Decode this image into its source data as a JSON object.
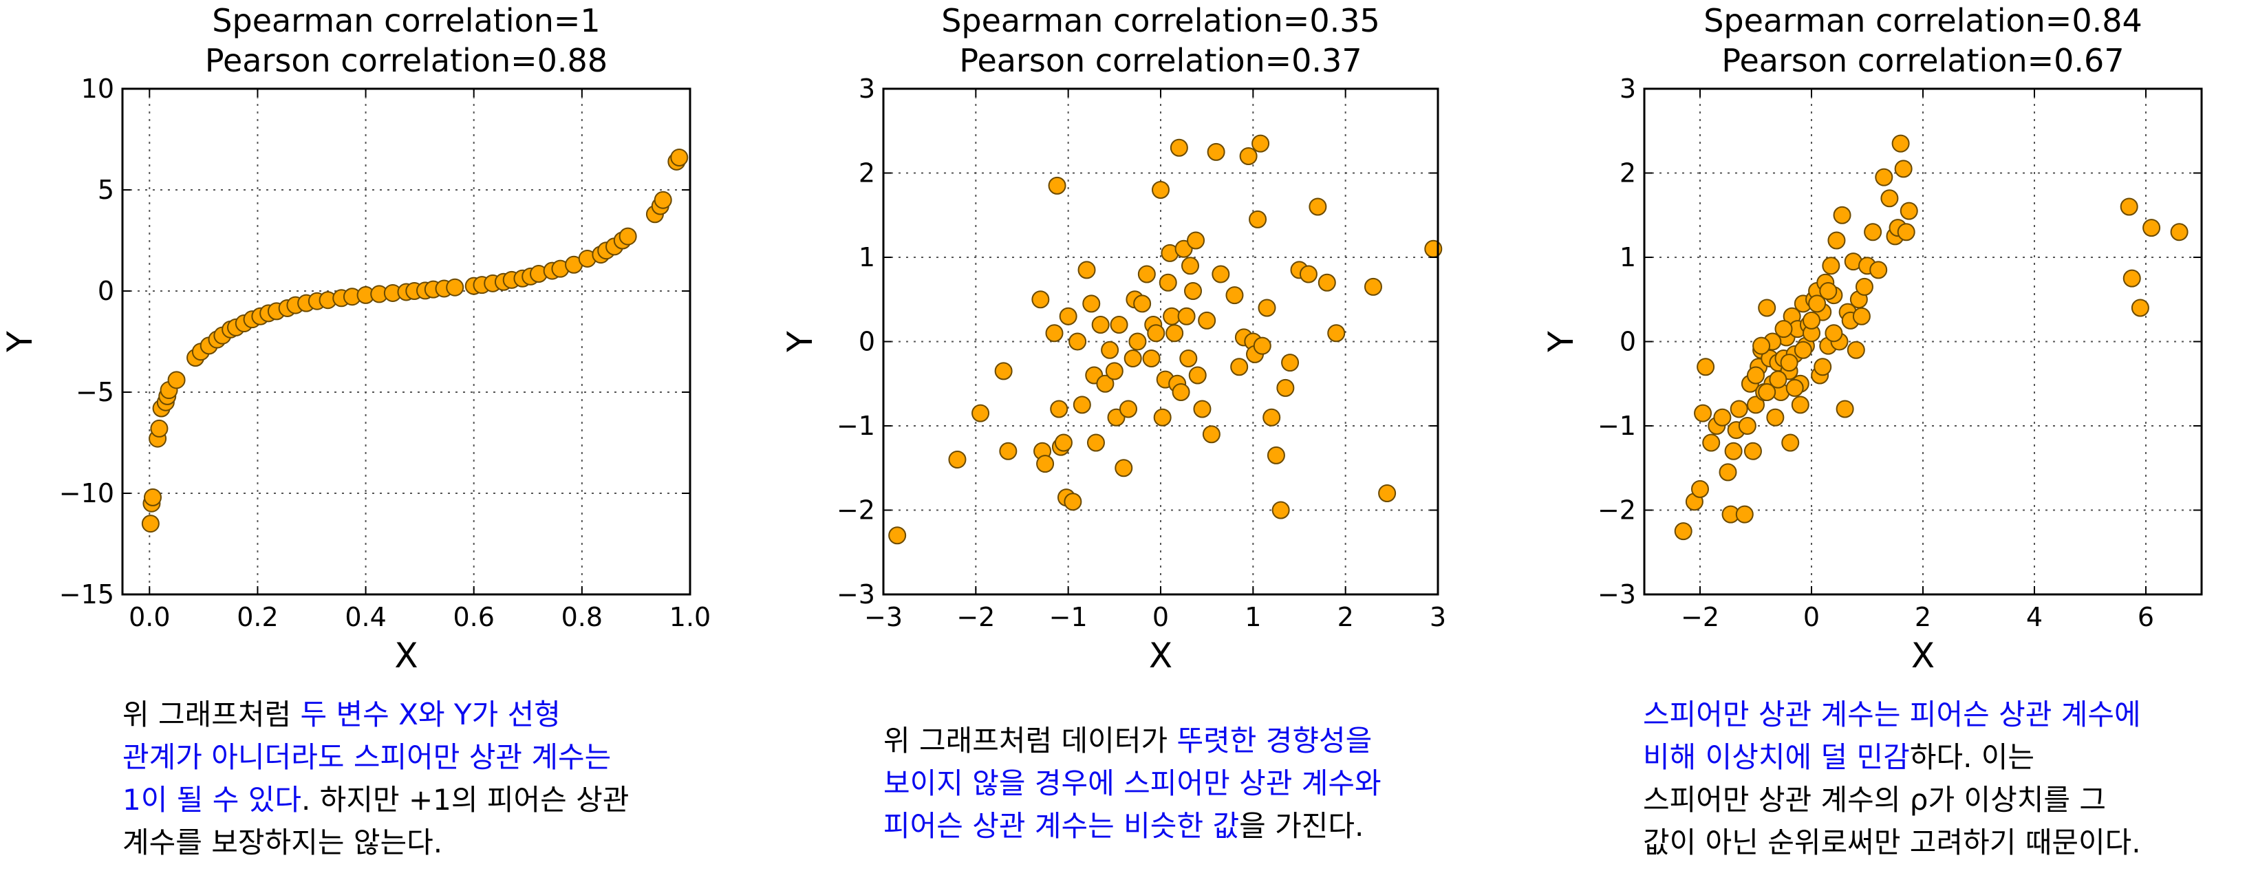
{
  "accent_color": "#0a0af0",
  "marker_color": "#ffa500",
  "chart_data": [
    {
      "type": "scatter",
      "title": "Spearman correlation=1",
      "subtitle": "Pearson correlation=0.88",
      "xlabel": "X",
      "ylabel": "Y",
      "xlim": [
        -0.05,
        1.0
      ],
      "ylim": [
        -15,
        10
      ],
      "xticks": [
        0.0,
        0.2,
        0.4,
        0.6,
        0.8,
        1.0
      ],
      "xtick_labels": [
        "0.0",
        "0.2",
        "0.4",
        "0.6",
        "0.8",
        "1.0"
      ],
      "yticks": [
        -15,
        -10,
        -5,
        0,
        5,
        10
      ],
      "ytick_labels": [
        "−15",
        "−10",
        "−5",
        "0",
        "5",
        "10"
      ],
      "grid": true,
      "x": [
        0.002,
        0.004,
        0.006,
        0.015,
        0.018,
        0.022,
        0.03,
        0.033,
        0.036,
        0.05,
        0.085,
        0.095,
        0.11,
        0.125,
        0.135,
        0.15,
        0.16,
        0.175,
        0.19,
        0.205,
        0.22,
        0.235,
        0.255,
        0.27,
        0.29,
        0.31,
        0.33,
        0.355,
        0.375,
        0.4,
        0.425,
        0.45,
        0.475,
        0.49,
        0.51,
        0.525,
        0.545,
        0.565,
        0.6,
        0.615,
        0.635,
        0.655,
        0.67,
        0.69,
        0.705,
        0.72,
        0.745,
        0.76,
        0.785,
        0.81,
        0.835,
        0.845,
        0.86,
        0.875,
        0.885,
        0.935,
        0.945,
        0.95,
        0.975,
        0.98
      ],
      "y": [
        -11.5,
        -10.5,
        -10.2,
        -7.3,
        -6.8,
        -5.8,
        -5.5,
        -5.2,
        -4.9,
        -4.4,
        -3.3,
        -3.0,
        -2.7,
        -2.4,
        -2.2,
        -1.9,
        -1.8,
        -1.6,
        -1.4,
        -1.25,
        -1.1,
        -1.0,
        -0.85,
        -0.7,
        -0.6,
        -0.5,
        -0.45,
        -0.35,
        -0.28,
        -0.2,
        -0.15,
        -0.1,
        -0.05,
        0.0,
        0.02,
        0.08,
        0.12,
        0.18,
        0.25,
        0.3,
        0.38,
        0.45,
        0.55,
        0.62,
        0.72,
        0.85,
        1.0,
        1.1,
        1.3,
        1.6,
        1.8,
        2.0,
        2.2,
        2.5,
        2.7,
        3.8,
        4.2,
        4.5,
        6.4,
        6.6
      ]
    },
    {
      "type": "scatter",
      "title": "Spearman correlation=0.35",
      "subtitle": "Pearson correlation=0.37",
      "xlabel": "X",
      "ylabel": "Y",
      "xlim": [
        -3,
        3
      ],
      "ylim": [
        -3,
        3
      ],
      "xticks": [
        -3,
        -2,
        -1,
        0,
        1,
        2,
        3
      ],
      "xtick_labels": [
        "−3",
        "−2",
        "−1",
        "0",
        "1",
        "2",
        "3"
      ],
      "yticks": [
        -3,
        -2,
        -1,
        0,
        1,
        2,
        3
      ],
      "ytick_labels": [
        "−3",
        "−2",
        "−1",
        "0",
        "1",
        "2",
        "3"
      ],
      "grid": true,
      "x": [
        -2.85,
        -2.2,
        -1.95,
        -1.7,
        -1.65,
        -1.3,
        -1.28,
        -1.25,
        -1.15,
        -1.12,
        -1.1,
        -1.08,
        -1.05,
        -1.02,
        -1.0,
        -0.95,
        -0.9,
        -0.85,
        -0.8,
        -0.75,
        -0.72,
        -0.7,
        -0.65,
        -0.6,
        -0.55,
        -0.5,
        -0.48,
        -0.45,
        -0.4,
        -0.35,
        -0.3,
        -0.28,
        -0.25,
        -0.2,
        -0.15,
        -0.1,
        -0.08,
        -0.05,
        0.0,
        0.02,
        0.05,
        0.08,
        0.1,
        0.12,
        0.15,
        0.18,
        0.2,
        0.22,
        0.25,
        0.28,
        0.3,
        0.32,
        0.35,
        0.38,
        0.4,
        0.45,
        0.5,
        0.55,
        0.6,
        0.65,
        0.8,
        0.85,
        0.9,
        0.95,
        1.0,
        1.02,
        1.05,
        1.08,
        1.1,
        1.15,
        1.2,
        1.25,
        1.3,
        1.35,
        1.4,
        1.5,
        1.6,
        1.7,
        1.8,
        1.9,
        2.3,
        2.45,
        2.95
      ],
      "y": [
        -2.3,
        -1.4,
        -0.85,
        -0.35,
        -1.3,
        0.5,
        -1.3,
        -1.45,
        0.1,
        1.85,
        -0.8,
        -1.25,
        -1.2,
        -1.85,
        0.3,
        -1.9,
        0.0,
        -0.75,
        0.85,
        0.45,
        -0.4,
        -1.2,
        0.2,
        -0.5,
        -0.1,
        -0.35,
        -0.9,
        0.2,
        -1.5,
        -0.8,
        -0.2,
        0.5,
        0.0,
        0.45,
        0.8,
        -0.2,
        0.2,
        0.1,
        1.8,
        -0.9,
        -0.45,
        0.7,
        1.05,
        0.3,
        0.1,
        -0.5,
        2.3,
        -0.6,
        1.1,
        0.3,
        -0.2,
        0.9,
        0.6,
        1.2,
        -0.4,
        -0.8,
        0.25,
        -1.1,
        2.25,
        0.8,
        0.55,
        -0.3,
        0.05,
        2.2,
        0.0,
        -0.15,
        1.45,
        2.35,
        -0.05,
        0.4,
        -0.9,
        -1.35,
        -2.0,
        -0.55,
        -0.25,
        0.85,
        0.8,
        1.6,
        0.7,
        0.1,
        0.65,
        -1.8,
        1.1
      ]
    },
    {
      "type": "scatter",
      "title": "Spearman correlation=0.84",
      "subtitle": "Pearson correlation=0.67",
      "xlabel": "X",
      "ylabel": "Y",
      "xlim": [
        -3,
        7
      ],
      "ylim": [
        -3,
        3
      ],
      "xticks": [
        -2,
        0,
        2,
        4,
        6
      ],
      "xtick_labels": [
        "−2",
        "0",
        "2",
        "4",
        "6"
      ],
      "yticks": [
        -3,
        -2,
        -1,
        0,
        1,
        2,
        3
      ],
      "ytick_labels": [
        "−3",
        "−2",
        "−1",
        "0",
        "1",
        "2",
        "3"
      ],
      "grid": true,
      "x": [
        -2.3,
        -2.1,
        -2.0,
        -1.95,
        -1.9,
        -1.8,
        -1.7,
        -1.6,
        -1.5,
        -1.45,
        -1.4,
        -1.35,
        -1.3,
        -1.2,
        -1.15,
        -1.1,
        -1.05,
        -1.0,
        -0.95,
        -0.9,
        -0.85,
        -0.8,
        -0.75,
        -0.7,
        -0.65,
        -0.6,
        -0.55,
        -0.5,
        -0.45,
        -0.4,
        -0.38,
        -0.35,
        -0.3,
        -0.25,
        -0.2,
        -0.15,
        -0.1,
        -0.05,
        0.0,
        0.05,
        0.1,
        0.15,
        0.2,
        0.25,
        0.3,
        0.35,
        0.4,
        0.45,
        0.5,
        0.55,
        0.6,
        0.65,
        0.7,
        0.75,
        0.8,
        0.85,
        0.9,
        0.95,
        1.0,
        1.1,
        1.2,
        1.3,
        1.4,
        1.5,
        1.55,
        1.6,
        1.65,
        1.7,
        1.75,
        5.7,
        5.75,
        5.9,
        6.1,
        6.6,
        -0.3,
        -0.6,
        0.2,
        0.4,
        -0.15,
        -0.5,
        -0.8,
        0.0,
        0.3,
        -0.2,
        -1.0,
        -0.7,
        -0.4,
        -0.9,
        0.1
      ],
      "y": [
        -2.25,
        -1.9,
        -1.75,
        -0.85,
        -0.3,
        -1.2,
        -1.0,
        -0.9,
        -1.55,
        -2.05,
        -1.3,
        -1.05,
        -0.8,
        -2.05,
        -1.0,
        -0.5,
        -1.3,
        -0.75,
        -0.3,
        -0.1,
        -0.6,
        0.4,
        -0.2,
        -0.5,
        -0.9,
        -0.25,
        -0.6,
        -0.2,
        0.05,
        -0.35,
        -1.2,
        0.3,
        -0.15,
        0.15,
        -0.5,
        0.45,
        -0.05,
        0.2,
        0.1,
        0.5,
        0.6,
        -0.4,
        0.35,
        0.7,
        -0.05,
        0.9,
        0.55,
        1.2,
        0.0,
        1.5,
        -0.8,
        0.35,
        0.25,
        0.95,
        -0.1,
        0.5,
        0.3,
        0.65,
        0.9,
        1.3,
        0.85,
        1.95,
        1.7,
        1.25,
        1.35,
        2.35,
        2.05,
        1.3,
        1.55,
        1.6,
        0.75,
        0.4,
        1.35,
        1.3,
        -0.55,
        -0.45,
        -0.3,
        0.1,
        -0.1,
        0.15,
        -0.6,
        0.25,
        0.6,
        -0.75,
        -0.4,
        0.0,
        -0.25,
        -0.05,
        0.45
      ]
    }
  ],
  "captions": [
    {
      "lines": [
        [
          {
            "t": "위 그래프처럼 ",
            "hl": false
          },
          {
            "t": "두 변수 X와 Y가 선형",
            "hl": true
          }
        ],
        [
          {
            "t": "관계가 아니더라도 스피어만 상관 계수는",
            "hl": true
          }
        ],
        [
          {
            "t": "1이 될 수 있다",
            "hl": true
          },
          {
            "t": ". 하지만 +1의 피어슨 상관",
            "hl": false
          }
        ],
        [
          {
            "t": "계수를 보장하지는 않는다.",
            "hl": false
          }
        ]
      ]
    },
    {
      "lines": [
        [
          {
            "t": "위 그래프처럼 데이터가 ",
            "hl": false
          },
          {
            "t": "뚜렷한 경향성을",
            "hl": true
          }
        ],
        [
          {
            "t": "보이지 않을 경우에 스피어만 상관 계수와",
            "hl": true
          }
        ],
        [
          {
            "t": "피어슨 상관 계수는 비슷한 값",
            "hl": true
          },
          {
            "t": "을 가진다.",
            "hl": false
          }
        ]
      ]
    },
    {
      "lines": [
        [
          {
            "t": "스피어만 상관 계수는 피어슨 상관 계수에",
            "hl": true
          }
        ],
        [
          {
            "t": "비해 이상치에 덜 민감",
            "hl": true
          },
          {
            "t": "하다. 이는",
            "hl": false
          }
        ],
        [
          {
            "t": "스피어만 상관 계수의 ρ가 이상치를 그",
            "hl": false
          }
        ],
        [
          {
            "t": "값이 아닌 순위로써만 고려하기 때문이다.",
            "hl": false
          }
        ]
      ]
    }
  ]
}
